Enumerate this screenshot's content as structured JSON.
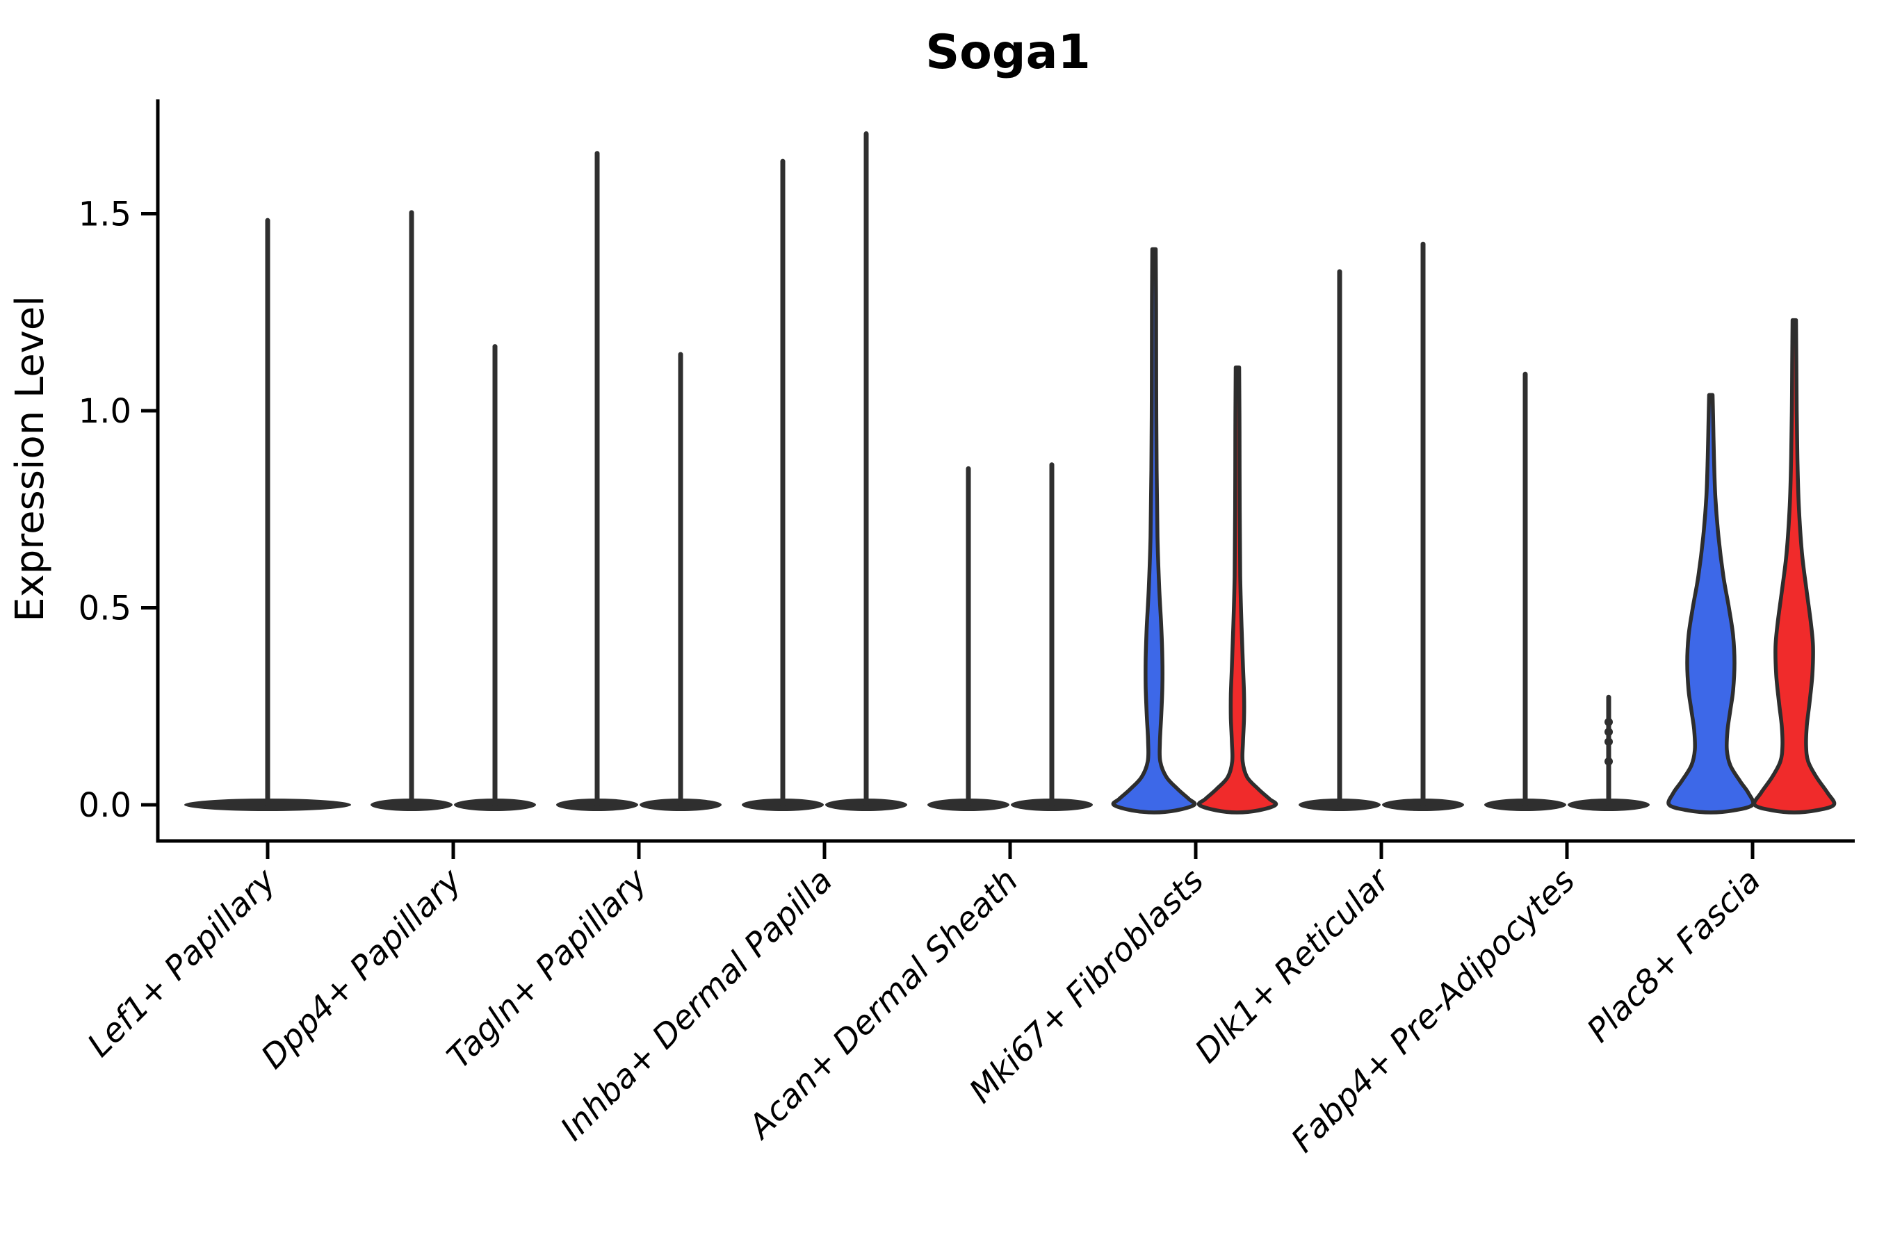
{
  "chart_data": {
    "type": "violin",
    "title": "Soga1",
    "ylabel": "Expression Level",
    "xlabel": "",
    "yticks": [
      "0.0",
      "0.5",
      "1.0",
      "1.5"
    ],
    "ytick_values": [
      0.0,
      0.5,
      1.0,
      1.5
    ],
    "ylim": [
      -0.09,
      1.79
    ],
    "grid": false,
    "legend": "none",
    "split_violin_groups": 2,
    "colors": {
      "group1_fill": "#3D68E8",
      "group2_fill": "#F02B2B",
      "edge": "#2D2D2D",
      "spike": "#2F2F2F",
      "axis": "#000000",
      "background": "#FFFFFF"
    },
    "categories": [
      {
        "label": "Lef1+ Papillary",
        "violins": [
          {
            "group": "single",
            "style": "spike",
            "position": "center",
            "max": 1.49,
            "base_halfwidth": 120
          }
        ]
      },
      {
        "label": "Dpp4+ Papillary",
        "violins": [
          {
            "group": "group1",
            "style": "spike",
            "position": "left",
            "max": 1.51,
            "base_halfwidth": 59
          },
          {
            "group": "group2",
            "style": "spike",
            "position": "right",
            "max": 1.17,
            "base_halfwidth": 59
          }
        ]
      },
      {
        "label": "Tagln+ Papillary",
        "violins": [
          {
            "group": "group1",
            "style": "spike",
            "position": "left",
            "max": 1.66,
            "base_halfwidth": 59
          },
          {
            "group": "group2",
            "style": "spike",
            "position": "right",
            "max": 1.15,
            "base_halfwidth": 59
          }
        ]
      },
      {
        "label": "Inhba+ Dermal Papilla",
        "violins": [
          {
            "group": "group1",
            "style": "spike",
            "position": "left",
            "max": 1.64,
            "base_halfwidth": 59
          },
          {
            "group": "group2",
            "style": "spike",
            "position": "right",
            "max": 1.71,
            "base_halfwidth": 59
          }
        ]
      },
      {
        "label": "Acan+ Dermal Sheath",
        "violins": [
          {
            "group": "group1",
            "style": "spike",
            "position": "left",
            "max": 0.86,
            "base_halfwidth": 59
          },
          {
            "group": "group2",
            "style": "spike",
            "position": "right",
            "max": 0.87,
            "base_halfwidth": 59
          }
        ]
      },
      {
        "label": "Mki67+ Fibroblasts",
        "violins": [
          {
            "group": "group1",
            "style": "body",
            "position": "left",
            "max": 1.41,
            "base_halfwidth": 58,
            "profile": [
              [
                1.41,
                2.5
              ],
              [
                1.25,
                3
              ],
              [
                1.05,
                3.2
              ],
              [
                0.85,
                3.8
              ],
              [
                0.68,
                5
              ],
              [
                0.55,
                7.5
              ],
              [
                0.45,
                10.5
              ],
              [
                0.37,
                12
              ],
              [
                0.3,
                12
              ],
              [
                0.23,
                10.5
              ],
              [
                0.16,
                8.5
              ],
              [
                0.11,
                9
              ],
              [
                0.07,
                18
              ],
              [
                0.04,
                34
              ],
              [
                0.015,
                50
              ],
              [
                0,
                58
              ]
            ]
          },
          {
            "group": "group2",
            "style": "body",
            "position": "right",
            "max": 1.11,
            "base_halfwidth": 55,
            "profile": [
              [
                1.11,
                2.5
              ],
              [
                0.95,
                3
              ],
              [
                0.75,
                3.3
              ],
              [
                0.58,
                4
              ],
              [
                0.45,
                6
              ],
              [
                0.35,
                8
              ],
              [
                0.28,
                9.5
              ],
              [
                0.22,
                9.5
              ],
              [
                0.16,
                8
              ],
              [
                0.11,
                7.5
              ],
              [
                0.07,
                14
              ],
              [
                0.04,
                30
              ],
              [
                0.015,
                46
              ],
              [
                0,
                55
              ]
            ]
          }
        ]
      },
      {
        "label": "Dlk1+ Reticular",
        "violins": [
          {
            "group": "group1",
            "style": "spike",
            "position": "left",
            "max": 1.36,
            "base_halfwidth": 59
          },
          {
            "group": "group2",
            "style": "spike",
            "position": "right",
            "max": 1.43,
            "base_halfwidth": 59
          }
        ]
      },
      {
        "label": "Fabp4+ Pre-Adipocytes",
        "violins": [
          {
            "group": "group1",
            "style": "spike",
            "position": "left",
            "max": 1.1,
            "base_halfwidth": 59
          },
          {
            "group": "group2",
            "style": "spike",
            "position": "right",
            "max": 0.28,
            "base_halfwidth": 59,
            "point_values": [
              0.21,
              0.185,
              0.16,
              0.11
            ]
          }
        ]
      },
      {
        "label": "Plac8+ Fascia",
        "violins": [
          {
            "group": "group1",
            "style": "body",
            "position": "left",
            "max": 1.04,
            "base_halfwidth": 60,
            "profile": [
              [
                1.04,
                2.5
              ],
              [
                0.96,
                3.5
              ],
              [
                0.88,
                4.5
              ],
              [
                0.78,
                6.5
              ],
              [
                0.68,
                11
              ],
              [
                0.58,
                18
              ],
              [
                0.5,
                26
              ],
              [
                0.43,
                32
              ],
              [
                0.36,
                34
              ],
              [
                0.29,
                32
              ],
              [
                0.24,
                28
              ],
              [
                0.19,
                24
              ],
              [
                0.14,
                23
              ],
              [
                0.1,
                28
              ],
              [
                0.06,
                42
              ],
              [
                0.03,
                54
              ],
              [
                0,
                60
              ]
            ]
          },
          {
            "group": "group2",
            "style": "body",
            "position": "right",
            "max": 1.23,
            "base_halfwidth": 57,
            "profile": [
              [
                1.23,
                2.5
              ],
              [
                1.12,
                3
              ],
              [
                1.0,
                3.5
              ],
              [
                0.88,
                4.5
              ],
              [
                0.76,
                6.5
              ],
              [
                0.64,
                11
              ],
              [
                0.54,
                18
              ],
              [
                0.46,
                24
              ],
              [
                0.4,
                27
              ],
              [
                0.33,
                26
              ],
              [
                0.26,
                22
              ],
              [
                0.2,
                18
              ],
              [
                0.15,
                17
              ],
              [
                0.11,
                20
              ],
              [
                0.07,
                32
              ],
              [
                0.03,
                48
              ],
              [
                0,
                57
              ]
            ]
          }
        ]
      }
    ]
  }
}
